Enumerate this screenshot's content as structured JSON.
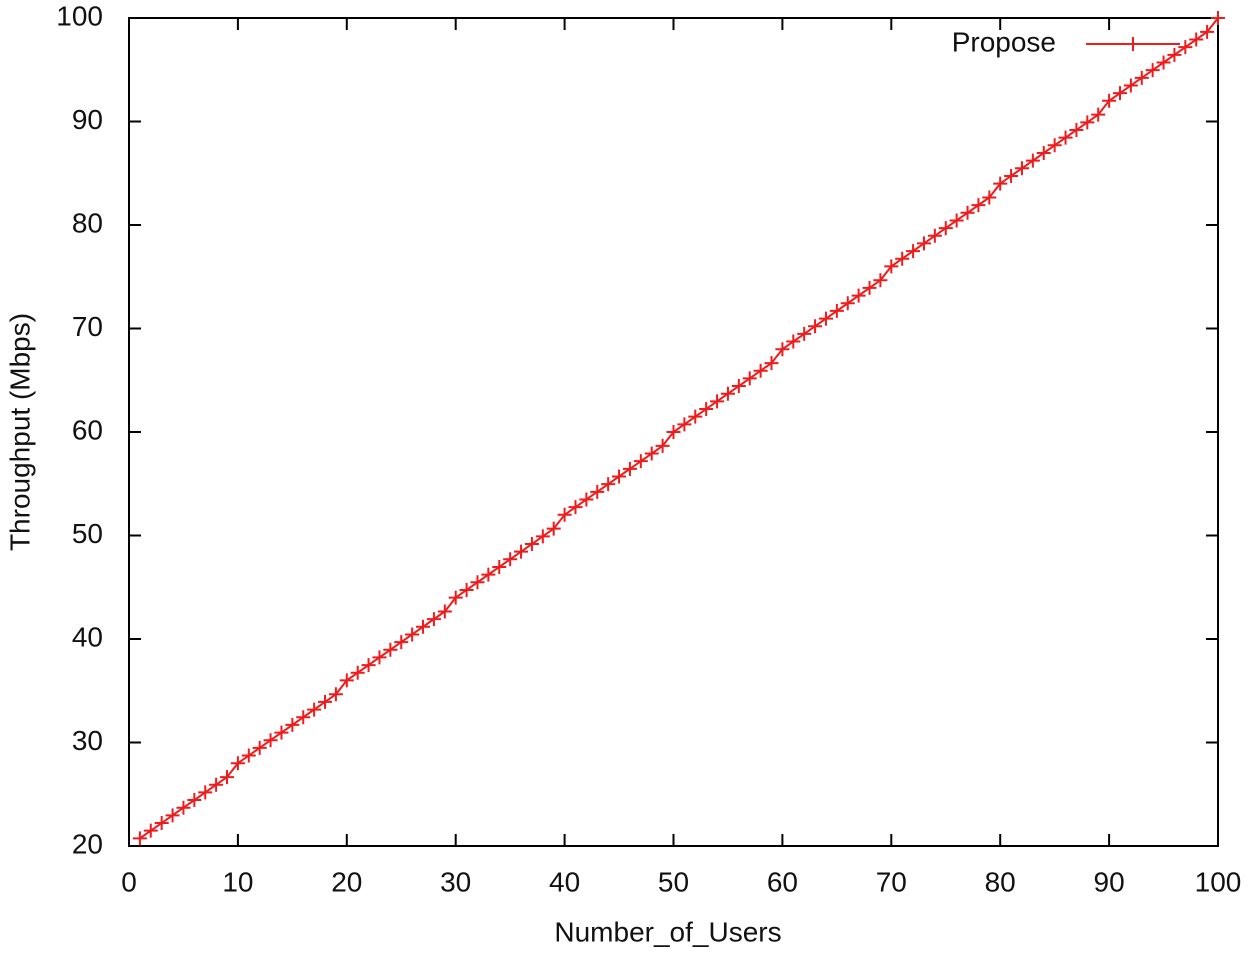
{
  "chart_data": {
    "type": "line",
    "xlabel": "Number_of_Users",
    "ylabel": "Throughput (Mbps)",
    "x": [
      1,
      2,
      3,
      4,
      5,
      6,
      7,
      8,
      9,
      10,
      11,
      12,
      13,
      14,
      15,
      16,
      17,
      18,
      19,
      20,
      21,
      22,
      23,
      24,
      25,
      26,
      27,
      28,
      29,
      30,
      31,
      32,
      33,
      34,
      35,
      36,
      37,
      38,
      39,
      40,
      41,
      42,
      43,
      44,
      45,
      46,
      47,
      48,
      49,
      50,
      51,
      52,
      53,
      54,
      55,
      56,
      57,
      58,
      59,
      60,
      61,
      62,
      63,
      64,
      65,
      66,
      67,
      68,
      69,
      70,
      71,
      72,
      73,
      74,
      75,
      76,
      77,
      78,
      79,
      80,
      81,
      82,
      83,
      84,
      85,
      86,
      87,
      88,
      89,
      90,
      91,
      92,
      93,
      94,
      95,
      96,
      97,
      98,
      99,
      100
    ],
    "series": [
      {
        "name": "Propose",
        "color": "#ee1c1c",
        "values": [
          20.74,
          21.48,
          22.22,
          22.96,
          23.7,
          24.44,
          25.18,
          25.92,
          26.66,
          28,
          28.74,
          29.48,
          30.22,
          30.96,
          31.7,
          32.44,
          33.18,
          33.92,
          34.66,
          36,
          36.74,
          37.48,
          38.22,
          38.96,
          39.7,
          40.44,
          41.18,
          41.92,
          42.66,
          44,
          44.74,
          45.48,
          46.22,
          46.96,
          47.7,
          48.44,
          49.18,
          49.92,
          50.66,
          52,
          52.74,
          53.48,
          54.22,
          54.96,
          55.7,
          56.44,
          57.18,
          57.92,
          58.66,
          60,
          60.74,
          61.48,
          62.22,
          62.96,
          63.7,
          64.44,
          65.18,
          65.92,
          66.66,
          68,
          68.74,
          69.48,
          70.22,
          70.96,
          71.7,
          72.44,
          73.18,
          73.92,
          74.66,
          76,
          76.74,
          77.48,
          78.22,
          78.96,
          79.7,
          80.44,
          81.18,
          81.92,
          82.66,
          84,
          84.74,
          85.48,
          86.22,
          86.96,
          87.7,
          88.44,
          89.18,
          89.92,
          90.66,
          92,
          92.74,
          93.48,
          94.22,
          94.96,
          95.7,
          96.44,
          97.18,
          97.92,
          98.66,
          100
        ]
      }
    ],
    "xlim": [
      0,
      100
    ],
    "xticks": [
      0,
      10,
      20,
      30,
      40,
      50,
      60,
      70,
      80,
      90,
      100
    ],
    "ylim": [
      20,
      100
    ],
    "yticks": [
      20,
      30,
      40,
      50,
      60,
      70,
      80,
      90,
      100
    ],
    "legend": "top-right"
  }
}
